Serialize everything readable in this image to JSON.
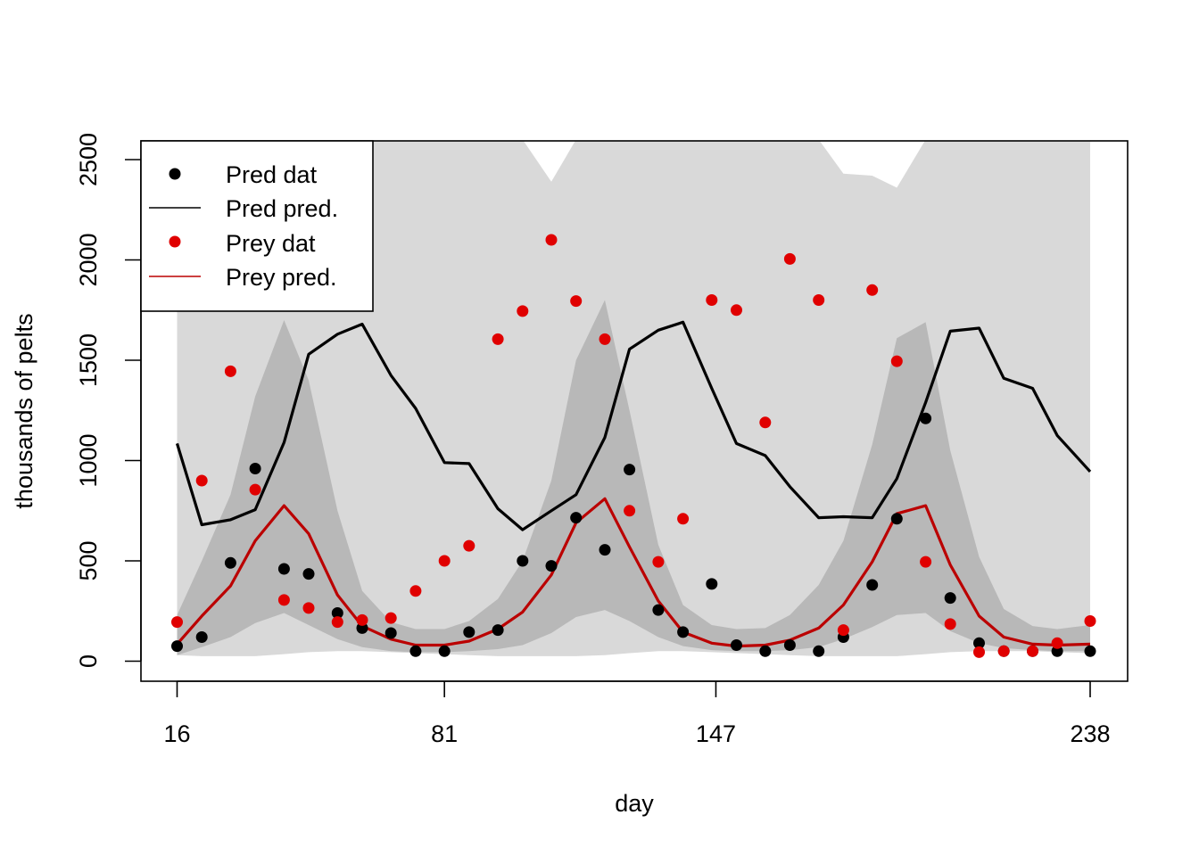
{
  "chart_data": {
    "type": "line",
    "xlabel": "day",
    "ylabel": "thousands of pelts",
    "x_ticks": [
      16,
      81,
      147,
      238
    ],
    "y_ticks": [
      0,
      500,
      1000,
      1500,
      2000,
      2500
    ],
    "xlim": [
      16,
      238
    ],
    "ylim": [
      0,
      2600
    ],
    "legend_position": "top-left",
    "x": [
      16,
      22,
      29,
      35,
      42,
      48,
      55,
      61,
      68,
      74,
      81,
      87,
      94,
      100,
      107,
      113,
      120,
      126,
      133,
      139,
      146,
      152,
      159,
      165,
      172,
      178,
      185,
      191,
      198,
      204,
      211,
      217,
      224,
      230,
      238
    ],
    "series": [
      {
        "name": "Pred dat",
        "kind": "points",
        "color": "#000000",
        "values": [
          75,
          120,
          490,
          960,
          460,
          435,
          240,
          165,
          140,
          50,
          50,
          145,
          155,
          500,
          475,
          715,
          555,
          955,
          255,
          145,
          385,
          80,
          50,
          80,
          50,
          120,
          380,
          710,
          1210,
          315,
          90,
          50,
          50,
          50,
          50
        ]
      },
      {
        "name": "Pred pred.",
        "kind": "line",
        "color": "#000000",
        "values": [
          1085,
          680,
          705,
          755,
          1090,
          1530,
          1630,
          1680,
          1425,
          1260,
          990,
          985,
          760,
          655,
          750,
          830,
          1115,
          1555,
          1650,
          1690,
          1360,
          1085,
          1025,
          870,
          715,
          720,
          715,
          910,
          1290,
          1645,
          1660,
          1410,
          1360,
          1125,
          945
        ]
      },
      {
        "name": "Prey dat",
        "kind": "points",
        "color": "#e00000",
        "values": [
          195,
          900,
          1445,
          855,
          305,
          265,
          195,
          205,
          215,
          350,
          500,
          575,
          1605,
          1745,
          2100,
          1795,
          1605,
          750,
          495,
          710,
          1800,
          1750,
          1190,
          2005,
          1800,
          155,
          1850,
          1495,
          495,
          185,
          45,
          50,
          50,
          90,
          200
        ]
      },
      {
        "name": "Prey pred.",
        "kind": "line",
        "color": "#bb0000",
        "values": [
          85,
          225,
          375,
          600,
          775,
          635,
          330,
          175,
          110,
          80,
          80,
          100,
          160,
          245,
          430,
          690,
          810,
          570,
          300,
          145,
          90,
          75,
          80,
          105,
          165,
          280,
          495,
          735,
          775,
          480,
          225,
          120,
          85,
          80,
          85
        ]
      }
    ],
    "bands": [
      {
        "level": "outer",
        "color": "#d9d9d9",
        "lower": [
          30,
          25,
          25,
          25,
          35,
          45,
          50,
          50,
          45,
          40,
          35,
          30,
          25,
          25,
          25,
          25,
          30,
          40,
          50,
          50,
          45,
          40,
          35,
          30,
          25,
          25,
          25,
          25,
          35,
          45,
          50,
          50,
          50,
          45,
          40
        ],
        "upper": [
          1800,
          2600,
          2600,
          2600,
          2600,
          2600,
          2600,
          2600,
          2600,
          2600,
          2600,
          2600,
          2600,
          2600,
          2390,
          2600,
          2600,
          2600,
          2600,
          2600,
          2600,
          2600,
          2600,
          2600,
          2600,
          2430,
          2420,
          2360,
          2600,
          2600,
          2600,
          2600,
          2600,
          2600,
          2600
        ]
      },
      {
        "level": "inner",
        "color": "#b8b8b8",
        "lower": [
          30,
          70,
          120,
          190,
          240,
          180,
          110,
          70,
          50,
          45,
          45,
          50,
          60,
          80,
          140,
          220,
          255,
          200,
          120,
          75,
          55,
          50,
          50,
          55,
          70,
          110,
          170,
          230,
          240,
          150,
          90,
          65,
          55,
          50,
          50
        ],
        "upper": [
          230,
          500,
          830,
          1320,
          1700,
          1400,
          750,
          350,
          195,
          160,
          160,
          200,
          310,
          500,
          900,
          1500,
          1800,
          1250,
          580,
          280,
          180,
          160,
          165,
          230,
          380,
          600,
          1080,
          1610,
          1690,
          1050,
          520,
          260,
          175,
          160,
          180
        ]
      }
    ]
  }
}
